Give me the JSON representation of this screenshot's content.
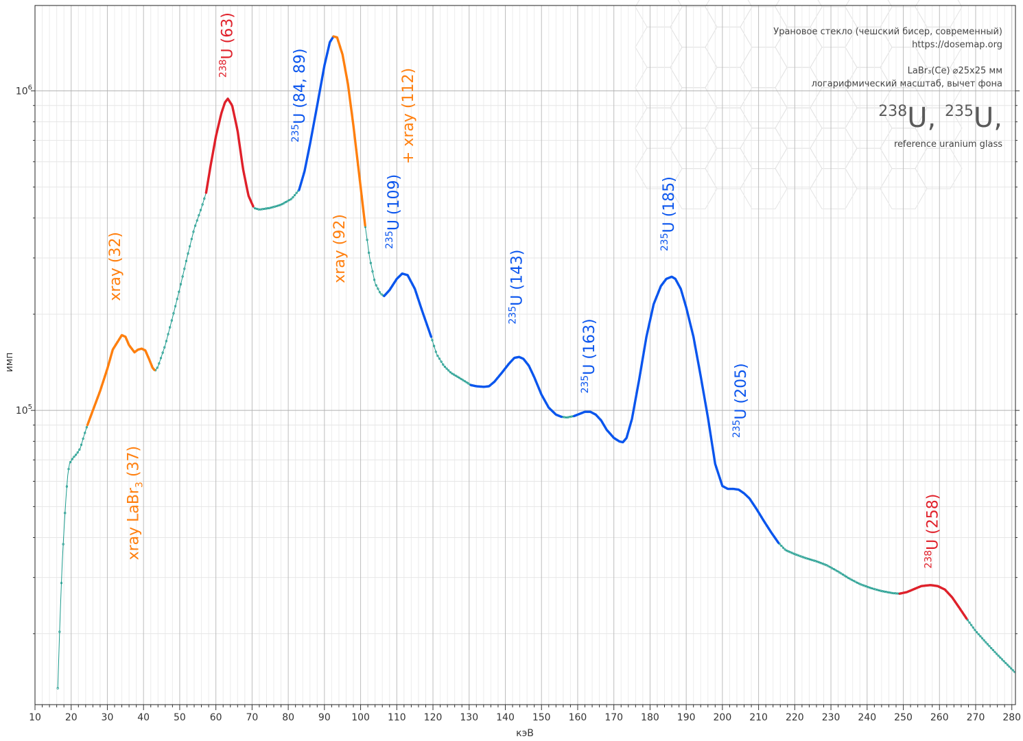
{
  "chart_data": {
    "type": "line",
    "title": "",
    "xlabel": "кэВ",
    "ylabel": "имп",
    "xlim": [
      10,
      281
    ],
    "ylim": [
      12000,
      1850000
    ],
    "y_scale": "log",
    "grid": true,
    "x_ticks": [
      10,
      20,
      30,
      40,
      50,
      60,
      70,
      80,
      90,
      100,
      110,
      120,
      130,
      140,
      150,
      160,
      170,
      180,
      190,
      200,
      210,
      220,
      230,
      240,
      250,
      260,
      270,
      280
    ],
    "y_ticks": [
      {
        "value": 100000,
        "base": "10",
        "exp": "5"
      },
      {
        "value": 1000000,
        "base": "10",
        "exp": "6"
      }
    ],
    "info": {
      "line1": "Урановое стекло (чешский бисер, современный)",
      "line2": "https://dosemap.org",
      "line3": "LaBr₃(Ce) ⌀25x25 мм",
      "line4": "логарифмический масштаб, вычет фона",
      "big_iso1": "238",
      "big_el1": "U, ",
      "big_iso2": "235",
      "big_el2": "U,",
      "line5": "reference uranium glass"
    },
    "colors": {
      "base": "#1a9a8c",
      "u238": "#e0202a",
      "u235": "#0a55ee",
      "xray": "#ff7f0e"
    },
    "points": [
      [
        16.3,
        13500
      ],
      [
        16.9,
        22000
      ],
      [
        17.5,
        33000
      ],
      [
        18,
        42000
      ],
      [
        18.5,
        52000
      ],
      [
        19,
        62000
      ],
      [
        19.5,
        68000
      ],
      [
        20.5,
        71000
      ],
      [
        21.5,
        73000
      ],
      [
        22.5,
        76000
      ],
      [
        23.5,
        83000
      ],
      [
        24.5,
        90000
      ],
      [
        26,
        100000
      ],
      [
        28,
        115000
      ],
      [
        30,
        135000
      ],
      [
        31.5,
        155000
      ],
      [
        33,
        165000
      ],
      [
        34,
        172000
      ],
      [
        35,
        170000
      ],
      [
        36,
        160000
      ],
      [
        37.5,
        152000
      ],
      [
        38.5,
        155000
      ],
      [
        39.5,
        156000
      ],
      [
        40.5,
        154000
      ],
      [
        41.5,
        145000
      ],
      [
        42.5,
        136000
      ],
      [
        43.2,
        133000
      ],
      [
        44,
        137000
      ],
      [
        46,
        160000
      ],
      [
        48,
        195000
      ],
      [
        50,
        240000
      ],
      [
        52,
        300000
      ],
      [
        54,
        370000
      ],
      [
        56,
        430000
      ],
      [
        57.3,
        480000
      ],
      [
        58.5,
        580000
      ],
      [
        60,
        720000
      ],
      [
        61.5,
        850000
      ],
      [
        62.5,
        920000
      ],
      [
        63.3,
        945000
      ],
      [
        64.5,
        900000
      ],
      [
        66,
        750000
      ],
      [
        67.5,
        570000
      ],
      [
        69,
        470000
      ],
      [
        70.5,
        430000
      ],
      [
        72,
        425000
      ],
      [
        75,
        430000
      ],
      [
        78,
        440000
      ],
      [
        81,
        460000
      ],
      [
        83,
        490000
      ],
      [
        84.5,
        560000
      ],
      [
        86,
        680000
      ],
      [
        88,
        900000
      ],
      [
        90,
        1200000
      ],
      [
        91.5,
        1420000
      ],
      [
        92.5,
        1480000
      ],
      [
        93.5,
        1470000
      ],
      [
        95,
        1300000
      ],
      [
        96.5,
        1050000
      ],
      [
        98,
        780000
      ],
      [
        99.5,
        560000
      ],
      [
        101.3,
        375000
      ],
      [
        102.5,
        300000
      ],
      [
        104,
        250000
      ],
      [
        105.5,
        232000
      ],
      [
        106.5,
        228000
      ],
      [
        108,
        238000
      ],
      [
        110,
        258000
      ],
      [
        111.5,
        268000
      ],
      [
        113,
        265000
      ],
      [
        115,
        240000
      ],
      [
        117,
        205000
      ],
      [
        119.5,
        170000
      ],
      [
        121,
        150000
      ],
      [
        123,
        138000
      ],
      [
        125,
        131000
      ],
      [
        127,
        127000
      ],
      [
        129,
        123000
      ],
      [
        130.5,
        120000
      ],
      [
        132,
        119000
      ],
      [
        134,
        118500
      ],
      [
        135.5,
        119000
      ],
      [
        137,
        123000
      ],
      [
        139,
        131000
      ],
      [
        141,
        140000
      ],
      [
        142.5,
        146000
      ],
      [
        143.8,
        147000
      ],
      [
        145,
        145000
      ],
      [
        146.5,
        138000
      ],
      [
        148,
        127000
      ],
      [
        150,
        112000
      ],
      [
        152,
        102000
      ],
      [
        154,
        97000
      ],
      [
        155.5,
        95500
      ],
      [
        157,
        95000
      ],
      [
        159,
        96000
      ],
      [
        160.5,
        97500
      ],
      [
        162,
        99000
      ],
      [
        163.5,
        99000
      ],
      [
        165,
        97000
      ],
      [
        166.5,
        93000
      ],
      [
        168,
        87000
      ],
      [
        170,
        82000
      ],
      [
        171.5,
        80000
      ],
      [
        172.5,
        79500
      ],
      [
        173.5,
        82000
      ],
      [
        175,
        94000
      ],
      [
        177,
        125000
      ],
      [
        179,
        170000
      ],
      [
        181,
        215000
      ],
      [
        183,
        245000
      ],
      [
        184.5,
        258000
      ],
      [
        186,
        262000
      ],
      [
        187,
        258000
      ],
      [
        188.5,
        240000
      ],
      [
        190,
        210000
      ],
      [
        192,
        170000
      ],
      [
        194,
        128000
      ],
      [
        196,
        95000
      ],
      [
        198,
        68000
      ],
      [
        200,
        58000
      ],
      [
        201.5,
        56800
      ],
      [
        203,
        56800
      ],
      [
        204.5,
        56500
      ],
      [
        206,
        55000
      ],
      [
        207.5,
        53000
      ],
      [
        209.5,
        49000
      ],
      [
        211.5,
        45000
      ],
      [
        213.5,
        41500
      ],
      [
        215.5,
        38500
      ],
      [
        217.5,
        36500
      ],
      [
        220,
        35500
      ],
      [
        223,
        34500
      ],
      [
        226,
        33700
      ],
      [
        229,
        32700
      ],
      [
        232,
        31300
      ],
      [
        235,
        29800
      ],
      [
        238,
        28600
      ],
      [
        241,
        27800
      ],
      [
        244,
        27200
      ],
      [
        247,
        26800
      ],
      [
        249,
        26700
      ],
      [
        251,
        27000
      ],
      [
        253,
        27600
      ],
      [
        255,
        28200
      ],
      [
        257.5,
        28400
      ],
      [
        259.5,
        28200
      ],
      [
        261.5,
        27500
      ],
      [
        263.5,
        26000
      ],
      [
        265.5,
        24100
      ],
      [
        267.5,
        22300
      ],
      [
        270,
        20400
      ],
      [
        273,
        18700
      ],
      [
        276,
        17200
      ],
      [
        279,
        15900
      ],
      [
        281,
        15100
      ]
    ],
    "segments": [
      {
        "from": 24.5,
        "to": 43.2,
        "color": "xray"
      },
      {
        "from": 57.3,
        "to": 70.5,
        "color": "u238"
      },
      {
        "from": 83,
        "to": 92.5,
        "color": "u235"
      },
      {
        "from": 92.5,
        "to": 101.3,
        "color": "xray"
      },
      {
        "from": 106.5,
        "to": 119.5,
        "color": "u235"
      },
      {
        "from": 130.5,
        "to": 155.5,
        "color": "u235"
      },
      {
        "from": 159,
        "to": 215.5,
        "color": "u235"
      },
      {
        "from": 249,
        "to": 267.5,
        "color": "u238"
      }
    ],
    "annotations": [
      {
        "color": "u238",
        "sup": "238",
        "main": "U (63)",
        "x": 63,
        "y": 1100000
      },
      {
        "color": "u235",
        "sup": "235",
        "main": "U (84, 89)",
        "x": 83,
        "y": 690000
      },
      {
        "color": "xray",
        "sup": "",
        "main": "+ xray (112)",
        "x": 113,
        "y": 590000
      },
      {
        "color": "xray",
        "sup": "",
        "main": "xray (92)",
        "x": 94,
        "y": 250000
      },
      {
        "color": "u235",
        "sup": "235",
        "main": "U (109)",
        "x": 109,
        "y": 320000
      },
      {
        "color": "xray",
        "sup": "",
        "main": "xray (32)",
        "x": 32,
        "y": 220000
      },
      {
        "color": "xray",
        "sup": "",
        "main": "xray LaBr",
        "sub": "3",
        "tail": " (37)",
        "x": 37,
        "y": 34000
      },
      {
        "color": "u235",
        "sup": "235",
        "main": "U (143)",
        "x": 143,
        "y": 186000
      },
      {
        "color": "u235",
        "sup": "235",
        "main": "U (163)",
        "x": 163,
        "y": 113000
      },
      {
        "color": "u235",
        "sup": "235",
        "main": "U (185)",
        "x": 185,
        "y": 315000
      },
      {
        "color": "u235",
        "sup": "235",
        "main": "U (205)",
        "x": 205,
        "y": 82000
      },
      {
        "color": "u238",
        "sup": "238",
        "main": "U (258)",
        "x": 258,
        "y": 32000
      }
    ]
  }
}
